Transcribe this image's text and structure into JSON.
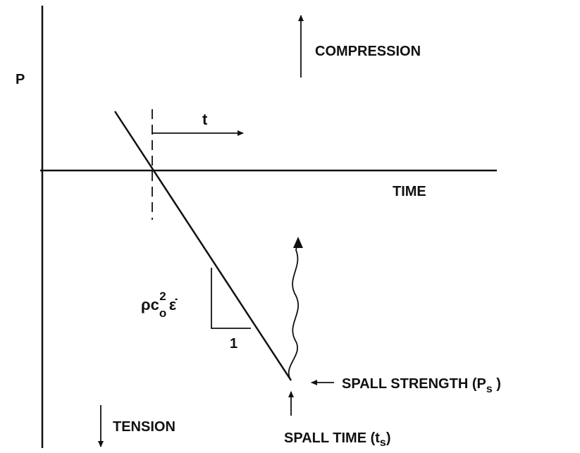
{
  "axis_label": "P",
  "compression_label": "COMPRESSION",
  "time_offset_label": "t",
  "time_label": "TIME",
  "slope_label": {
    "base": "ρc",
    "sub": "o",
    "sup": "2",
    "rate": "ε̇"
  },
  "slope_run_label": "1",
  "spall_strength_label": {
    "text": "SPALL STRENGTH (P",
    "sub": "s",
    "close": " )"
  },
  "spall_time_label": {
    "text": "SPALL TIME (t",
    "sub": "s",
    "close": ")"
  },
  "tension_label": "TENSION"
}
